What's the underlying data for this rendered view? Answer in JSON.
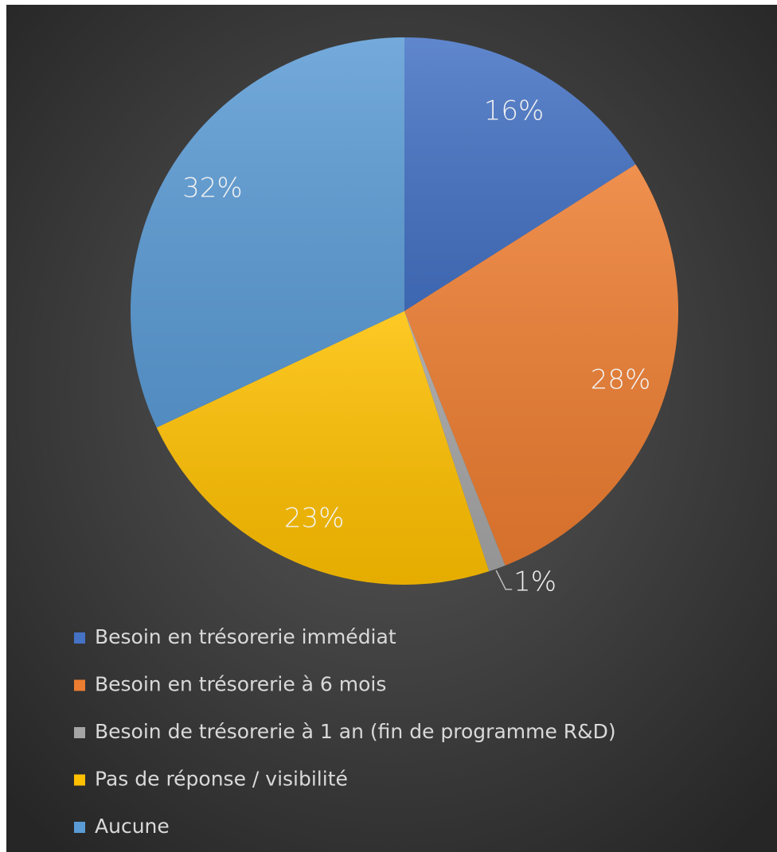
{
  "chart_data": {
    "type": "pie",
    "categories": [
      "Besoin en trésorerie immédiat",
      "Besoin en trésorerie à 6 mois",
      "Besoin de trésorerie à 1 an (fin de programme R&D)",
      "Pas de réponse / visibilité",
      "Aucune"
    ],
    "values": [
      16,
      28,
      1,
      23,
      32
    ],
    "value_labels": [
      "16%",
      "28%",
      "1%",
      "23%",
      "32%"
    ],
    "colors": [
      "#4472c4",
      "#ed7d31",
      "#a5a5a5",
      "#ffc000",
      "#5b9bd5"
    ]
  }
}
